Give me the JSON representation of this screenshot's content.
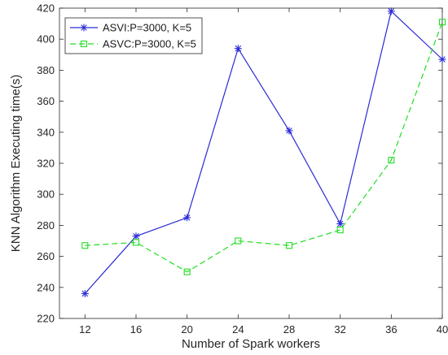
{
  "chart_data": {
    "type": "line",
    "title": "",
    "xlabel": "Number of Spark workers",
    "ylabel": "KNN Algorithm Executing time(s)",
    "x": [
      12,
      16,
      20,
      24,
      28,
      32,
      36,
      40
    ],
    "xlim": [
      10,
      40
    ],
    "ylim": [
      220,
      420
    ],
    "xticks": [
      "12",
      "16",
      "20",
      "24",
      "28",
      "32",
      "36",
      "40"
    ],
    "yticks": [
      "220",
      "240",
      "260",
      "280",
      "300",
      "320",
      "340",
      "360",
      "380",
      "400",
      "420"
    ],
    "grid": false,
    "legend_position": "top-left",
    "series": [
      {
        "name": "ASVI:P=3000, K=5",
        "values": [
          236,
          273,
          285,
          394,
          341,
          281,
          418,
          387
        ],
        "color": "#2b2bd6",
        "line_style": "solid",
        "marker": "asterisk"
      },
      {
        "name": "ASVC:P=3000, K=5",
        "values": [
          267,
          269,
          250,
          270,
          267,
          277,
          322,
          411
        ],
        "color": "#22dd22",
        "line_style": "dashed",
        "marker": "square"
      }
    ]
  }
}
